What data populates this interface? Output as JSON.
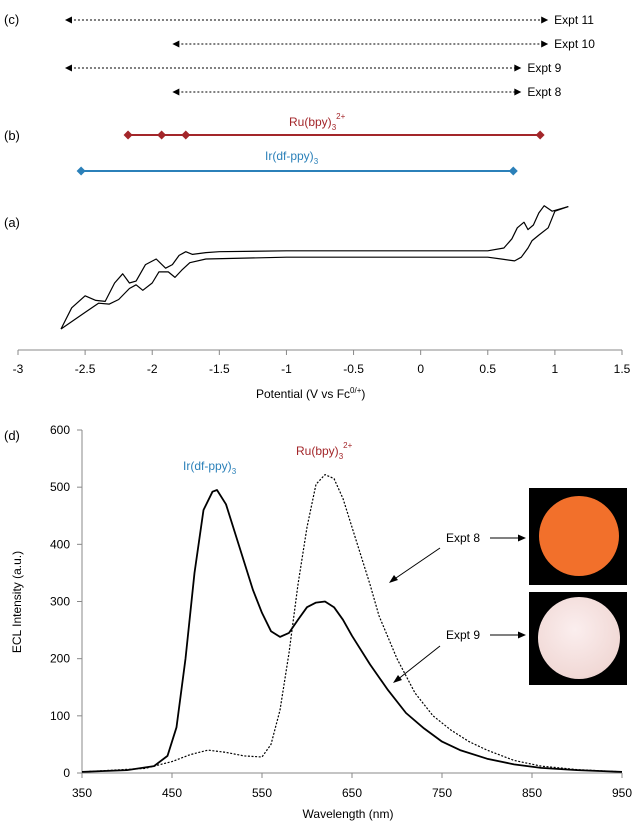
{
  "panels": {
    "c": {
      "label": "(c)",
      "arrows": [
        {
          "name": "Expt 11",
          "from": -2.65,
          "to": 0.95
        },
        {
          "name": "Expt 10",
          "from": -1.85,
          "to": 0.95
        },
        {
          "name": "Expt 9",
          "from": -2.65,
          "to": 0.75
        },
        {
          "name": "Expt 8",
          "from": -1.85,
          "to": 0.75
        }
      ]
    },
    "b": {
      "label": "(b)",
      "ru_label": "Ru(bpy)",
      "ru_sub": "3",
      "ru_sup": "2+",
      "ru_color": "#a3262a",
      "ru_points": [
        -2.18,
        -1.93,
        -1.75,
        0.89
      ],
      "ir_label": "Ir(df-ppy)",
      "ir_sub": "3",
      "ir_color": "#2b80b9",
      "ir_points": [
        -2.53,
        0.69
      ]
    },
    "a": {
      "label": "(a)",
      "x_axis_label": "Potential (V vs Fc",
      "x_axis_sup": "0/+",
      "x_axis_label_end": ")",
      "x_ticks": [
        "-3",
        "-2.5",
        "-2",
        "-1.5",
        "-1",
        "-0.5",
        "0",
        "0.5",
        "1",
        "1.5"
      ]
    },
    "d": {
      "label": "(d)",
      "y_axis_label": "ECL Intensity (a.u.)",
      "x_axis_label": "Wavelength (nm)",
      "ir_label": "Ir(df-ppy)",
      "ir_sub": "3",
      "ir_color": "#2b80b9",
      "ru_label": "Ru(bpy)",
      "ru_sub": "3",
      "ru_sup": "2+",
      "ru_color": "#a3262a",
      "expt8_label": "Expt  8",
      "expt9_label": "Expt  9",
      "photo8_color": "#f2702b",
      "photo9_color": "#f1d9d6"
    }
  },
  "chart_data": [
    {
      "type": "line",
      "panel": "a",
      "xlabel": "Potential (V vs Fc0/+)",
      "ylabel": "",
      "xlim": [
        -3,
        1.5
      ],
      "x_ticks": [
        -3,
        -2.5,
        -2,
        -1.5,
        -1,
        -0.5,
        0,
        0.5,
        1,
        1.5
      ],
      "series": [
        {
          "part": "upper",
          "x": [
            -2.68,
            -2.6,
            -2.5,
            -2.42,
            -2.35,
            -2.28,
            -2.22,
            -2.17,
            -2.12,
            -2.05,
            -1.97,
            -1.9,
            -1.85,
            -1.8,
            -1.75,
            -1.7,
            -1.6,
            -1.5,
            -1.0,
            0.0,
            0.5,
            0.62,
            0.68,
            0.72,
            0.77,
            0.8,
            0.84,
            0.88,
            0.92,
            0.98,
            1.1
          ],
          "y": [
            0.12,
            0.35,
            0.48,
            0.43,
            0.42,
            0.62,
            0.72,
            0.62,
            0.64,
            0.82,
            0.88,
            0.78,
            0.82,
            0.92,
            0.96,
            0.93,
            0.95,
            0.96,
            0.97,
            0.97,
            0.97,
            1.0,
            1.1,
            1.22,
            1.28,
            1.2,
            1.25,
            1.38,
            1.46,
            1.4,
            1.45
          ]
        },
        {
          "part": "lower",
          "x": [
            1.1,
            1.0,
            0.95,
            0.88,
            0.83,
            0.8,
            0.75,
            0.7,
            0.6,
            0.5,
            0.0,
            -1.0,
            -1.6,
            -1.72,
            -1.78,
            -1.83,
            -1.88,
            -1.95,
            -2.0,
            -2.07,
            -2.12,
            -2.17,
            -2.25,
            -2.32,
            -2.4,
            -2.5,
            -2.6,
            -2.68
          ],
          "y": [
            1.45,
            1.4,
            1.22,
            1.14,
            1.08,
            1.0,
            0.9,
            0.86,
            0.88,
            0.9,
            0.9,
            0.9,
            0.88,
            0.84,
            0.76,
            0.68,
            0.74,
            0.74,
            0.62,
            0.54,
            0.6,
            0.56,
            0.44,
            0.39,
            0.4,
            0.3,
            0.2,
            0.12
          ]
        }
      ]
    },
    {
      "type": "line",
      "panel": "d",
      "xlabel": "Wavelength (nm)",
      "ylabel": "ECL Intensity (a.u.)",
      "xlim": [
        350,
        950
      ],
      "ylim": [
        0,
        600
      ],
      "x_ticks": [
        350,
        450,
        550,
        650,
        750,
        850,
        950
      ],
      "y_ticks": [
        0,
        100,
        200,
        300,
        400,
        500,
        600
      ],
      "series": [
        {
          "name": "Expt 9",
          "style": "solid",
          "x": [
            350,
            400,
            430,
            445,
            455,
            465,
            475,
            485,
            495,
            500,
            510,
            520,
            530,
            540,
            550,
            560,
            570,
            580,
            590,
            600,
            610,
            620,
            630,
            640,
            650,
            670,
            690,
            710,
            730,
            750,
            770,
            800,
            830,
            860,
            900,
            950
          ],
          "y": [
            2,
            5,
            12,
            30,
            80,
            200,
            350,
            460,
            492,
            495,
            470,
            420,
            370,
            320,
            280,
            248,
            238,
            245,
            268,
            290,
            298,
            300,
            290,
            268,
            240,
            190,
            145,
            105,
            78,
            55,
            40,
            25,
            15,
            9,
            5,
            2
          ]
        },
        {
          "name": "Expt 8",
          "style": "dotted",
          "x": [
            350,
            420,
            450,
            470,
            490,
            510,
            530,
            550,
            560,
            570,
            580,
            590,
            600,
            610,
            620,
            630,
            640,
            650,
            660,
            670,
            680,
            700,
            720,
            740,
            760,
            780,
            800,
            830,
            860,
            900,
            950
          ],
          "y": [
            2,
            8,
            20,
            32,
            40,
            36,
            30,
            28,
            50,
            110,
            210,
            330,
            430,
            505,
            522,
            515,
            480,
            430,
            380,
            330,
            275,
            200,
            140,
            100,
            75,
            55,
            40,
            22,
            12,
            6,
            2
          ]
        }
      ]
    }
  ]
}
